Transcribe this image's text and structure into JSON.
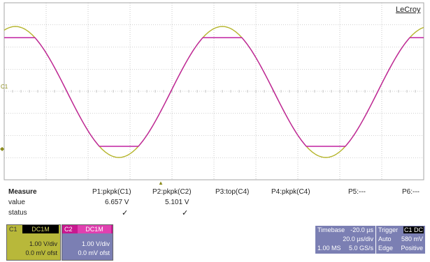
{
  "brand": "LeCroy",
  "ground_marker": "C1",
  "colors": {
    "c1": "#b4b42a",
    "c2": "#c020a0",
    "grid": "#a6a6a6",
    "panel": "#7b7fb3"
  },
  "measure": {
    "title": "Measure",
    "row_value": "value",
    "row_status": "status",
    "params": [
      {
        "name": "P1:pkpk(C1)",
        "value": "6.657 V",
        "status": "✓"
      },
      {
        "name": "P2:pkpk(C2)",
        "value": "5.101 V",
        "status": "✓"
      },
      {
        "name": "P3:top(C4)",
        "value": "",
        "status": ""
      },
      {
        "name": "P4:pkpk(C4)",
        "value": "",
        "status": ""
      },
      {
        "name": "P5:---",
        "value": "",
        "status": ""
      },
      {
        "name": "P6:---",
        "value": "",
        "status": ""
      }
    ]
  },
  "channels": [
    {
      "id": "C1",
      "mode": "DC1M",
      "vdiv": "1.00 V/div",
      "offset": "0.0 mV ofst"
    },
    {
      "id": "C2",
      "mode": "DC1M",
      "vdiv": "1.00 V/div",
      "offset": "0.0 mV ofst"
    }
  ],
  "timebase": {
    "label": "Timebase",
    "offset": "-20.0 µs",
    "tdiv": "20.0 µs/div",
    "samples": "1.00 MS",
    "rate": "5.0 GS/s"
  },
  "trigger": {
    "label": "Trigger",
    "channel": "C1 DC",
    "mode": "Auto",
    "level": "580 mV",
    "type": "Edge",
    "slope": "Positive"
  }
}
